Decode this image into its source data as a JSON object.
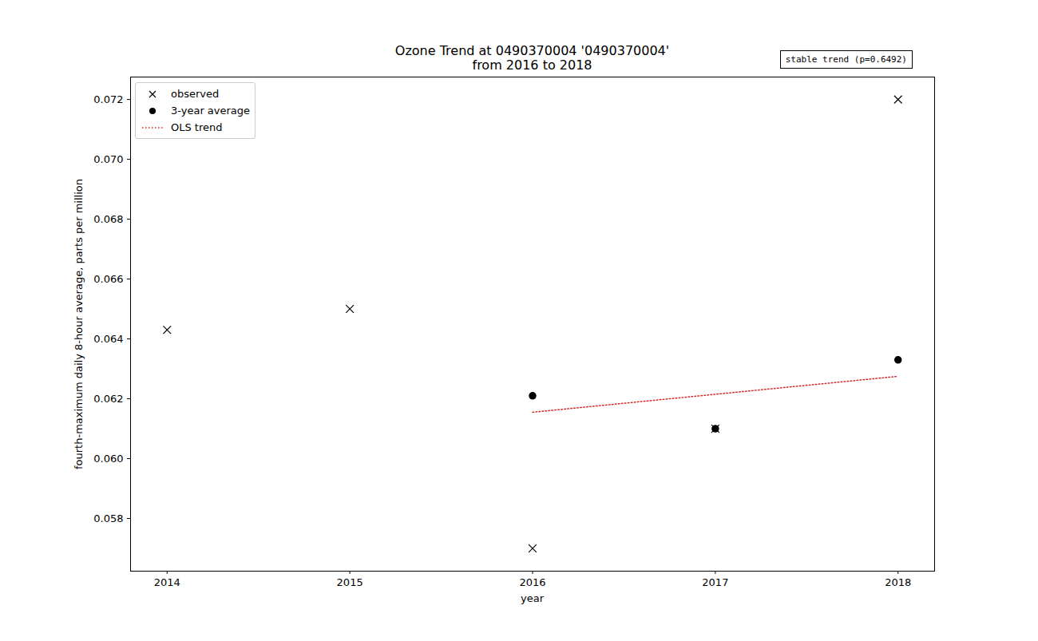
{
  "chart_data": {
    "type": "scatter",
    "title": "Ozone Trend at 0490370004 '0490370004'",
    "subtitle": "from 2016 to 2018",
    "annotation": "stable trend (p=0.6492)",
    "x_label": "year",
    "y_label": "fourth-maximum daily 8-hour average, parts per million",
    "xlim": [
      2013.8,
      2018.2
    ],
    "xticks": [
      2014,
      2015,
      2016,
      2017,
      2018
    ],
    "ylim": [
      0.05624,
      0.07275
    ],
    "yticks": [
      0.058,
      {
        "value": 0.06,
        "label": "0.060"
      },
      0.062,
      0.064,
      0.066,
      0.068,
      {
        "value": 0.07,
        "label": "0.070"
      },
      0.072
    ],
    "grid": false,
    "legend": "upper left",
    "series": [
      {
        "name": "observed",
        "type": "scatter",
        "marker": "x",
        "color": "#000000",
        "x": [
          2014,
          2015,
          2016,
          2017,
          2018
        ],
        "values": [
          0.0643,
          0.065,
          0.057,
          0.061,
          0.072
        ]
      },
      {
        "name": "3-year average",
        "type": "scatter",
        "marker": "circle",
        "color": "#000000",
        "x": [
          2016,
          2017,
          2018
        ],
        "values": [
          0.0621,
          0.061,
          0.0633
        ]
      },
      {
        "name": "OLS trend",
        "type": "line",
        "line_style": "dotted",
        "color": "#d62728",
        "x": [
          2016,
          2018
        ],
        "values": [
          0.06155,
          0.06275
        ]
      }
    ]
  }
}
